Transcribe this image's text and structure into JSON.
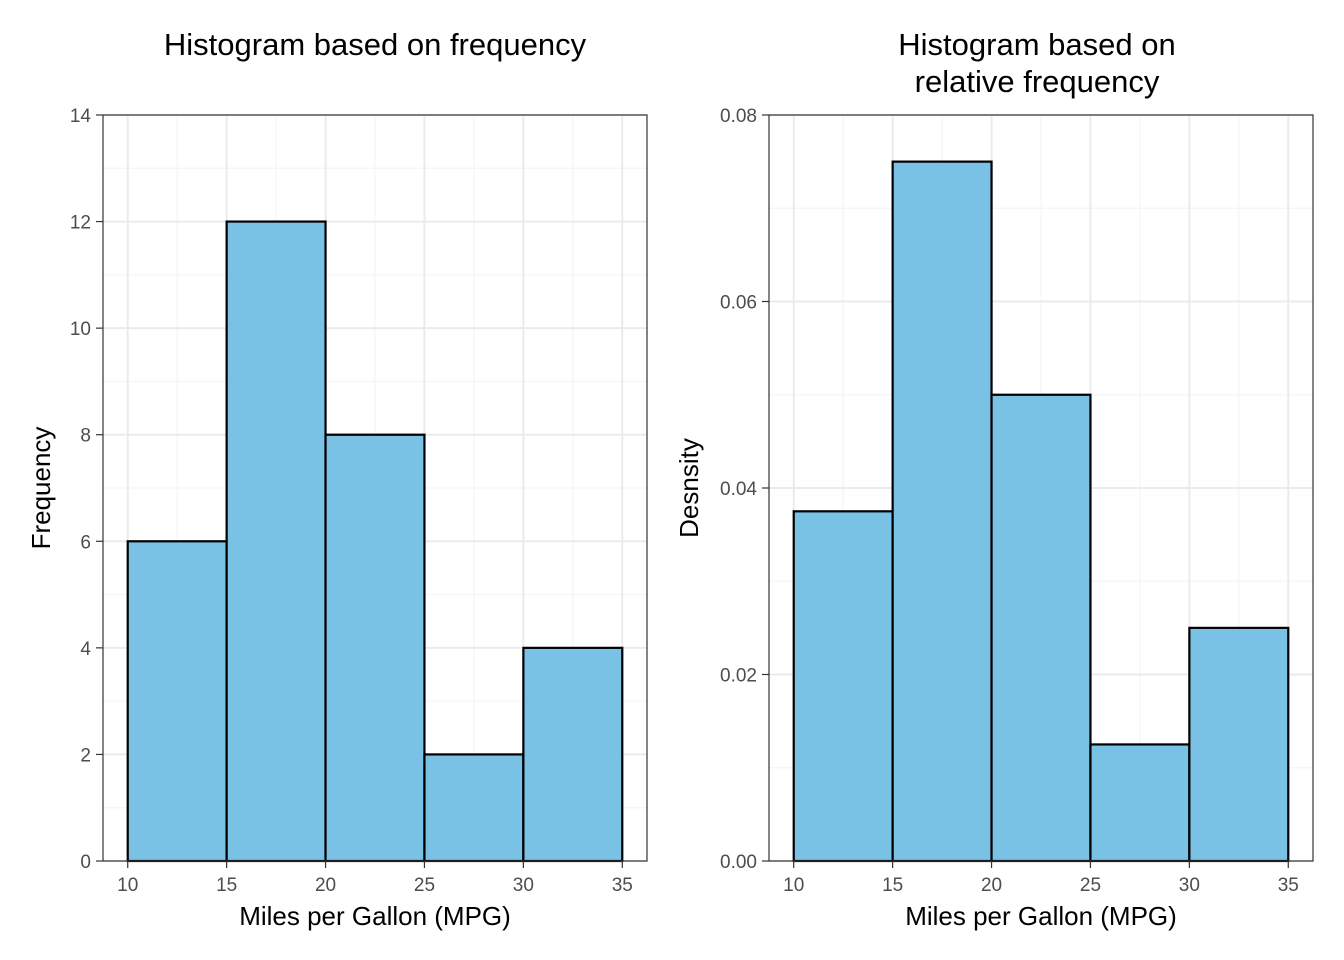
{
  "style": {
    "bar_fill": "#79c1e5",
    "bar_stroke": "#000000",
    "grid_major": "#ebebeb",
    "grid_minor": "#f5f5f5",
    "panel_border": "#333333",
    "tick_text": "#4d4d4d"
  },
  "chart_data": [
    {
      "type": "bar",
      "title": "Histogram based on frequency",
      "title_lines": [
        "Histogram based on frequency"
      ],
      "xlabel": "Miles per Gallon (MPG)",
      "ylabel": "Frequency",
      "bins": [
        {
          "x0": 10,
          "x1": 15,
          "value": 6
        },
        {
          "x0": 15,
          "x1": 20,
          "value": 12
        },
        {
          "x0": 20,
          "x1": 25,
          "value": 8
        },
        {
          "x0": 25,
          "x1": 30,
          "value": 2
        },
        {
          "x0": 30,
          "x1": 35,
          "value": 4
        }
      ],
      "xlim": [
        8.75,
        36.25
      ],
      "ylim": [
        0,
        14
      ],
      "x_ticks": [
        10,
        15,
        20,
        25,
        30,
        35
      ],
      "x_tick_labels": [
        "10",
        "15",
        "20",
        "25",
        "30",
        "35"
      ],
      "y_ticks": [
        0,
        2,
        4,
        6,
        8,
        10,
        12,
        14
      ],
      "y_tick_labels": [
        "0",
        "2",
        "4",
        "6",
        "8",
        "10",
        "12",
        "14"
      ],
      "grid": true,
      "legend": "none"
    },
    {
      "type": "bar",
      "title": "Histogram based on relative frequency",
      "title_lines": [
        "Histogram based on",
        "relative frequency"
      ],
      "xlabel": "Miles per Gallon (MPG)",
      "ylabel": "Desnsity",
      "bins": [
        {
          "x0": 10,
          "x1": 15,
          "value": 0.0375
        },
        {
          "x0": 15,
          "x1": 20,
          "value": 0.075
        },
        {
          "x0": 20,
          "x1": 25,
          "value": 0.05
        },
        {
          "x0": 25,
          "x1": 30,
          "value": 0.0125
        },
        {
          "x0": 30,
          "x1": 35,
          "value": 0.025
        }
      ],
      "xlim": [
        8.75,
        36.25
      ],
      "ylim": [
        0,
        0.08
      ],
      "x_ticks": [
        10,
        15,
        20,
        25,
        30,
        35
      ],
      "x_tick_labels": [
        "10",
        "15",
        "20",
        "25",
        "30",
        "35"
      ],
      "y_ticks": [
        0,
        0.02,
        0.04,
        0.06,
        0.08
      ],
      "y_tick_labels": [
        "0.00",
        "0.02",
        "0.04",
        "0.06",
        "0.08"
      ],
      "grid": true,
      "legend": "none"
    }
  ]
}
